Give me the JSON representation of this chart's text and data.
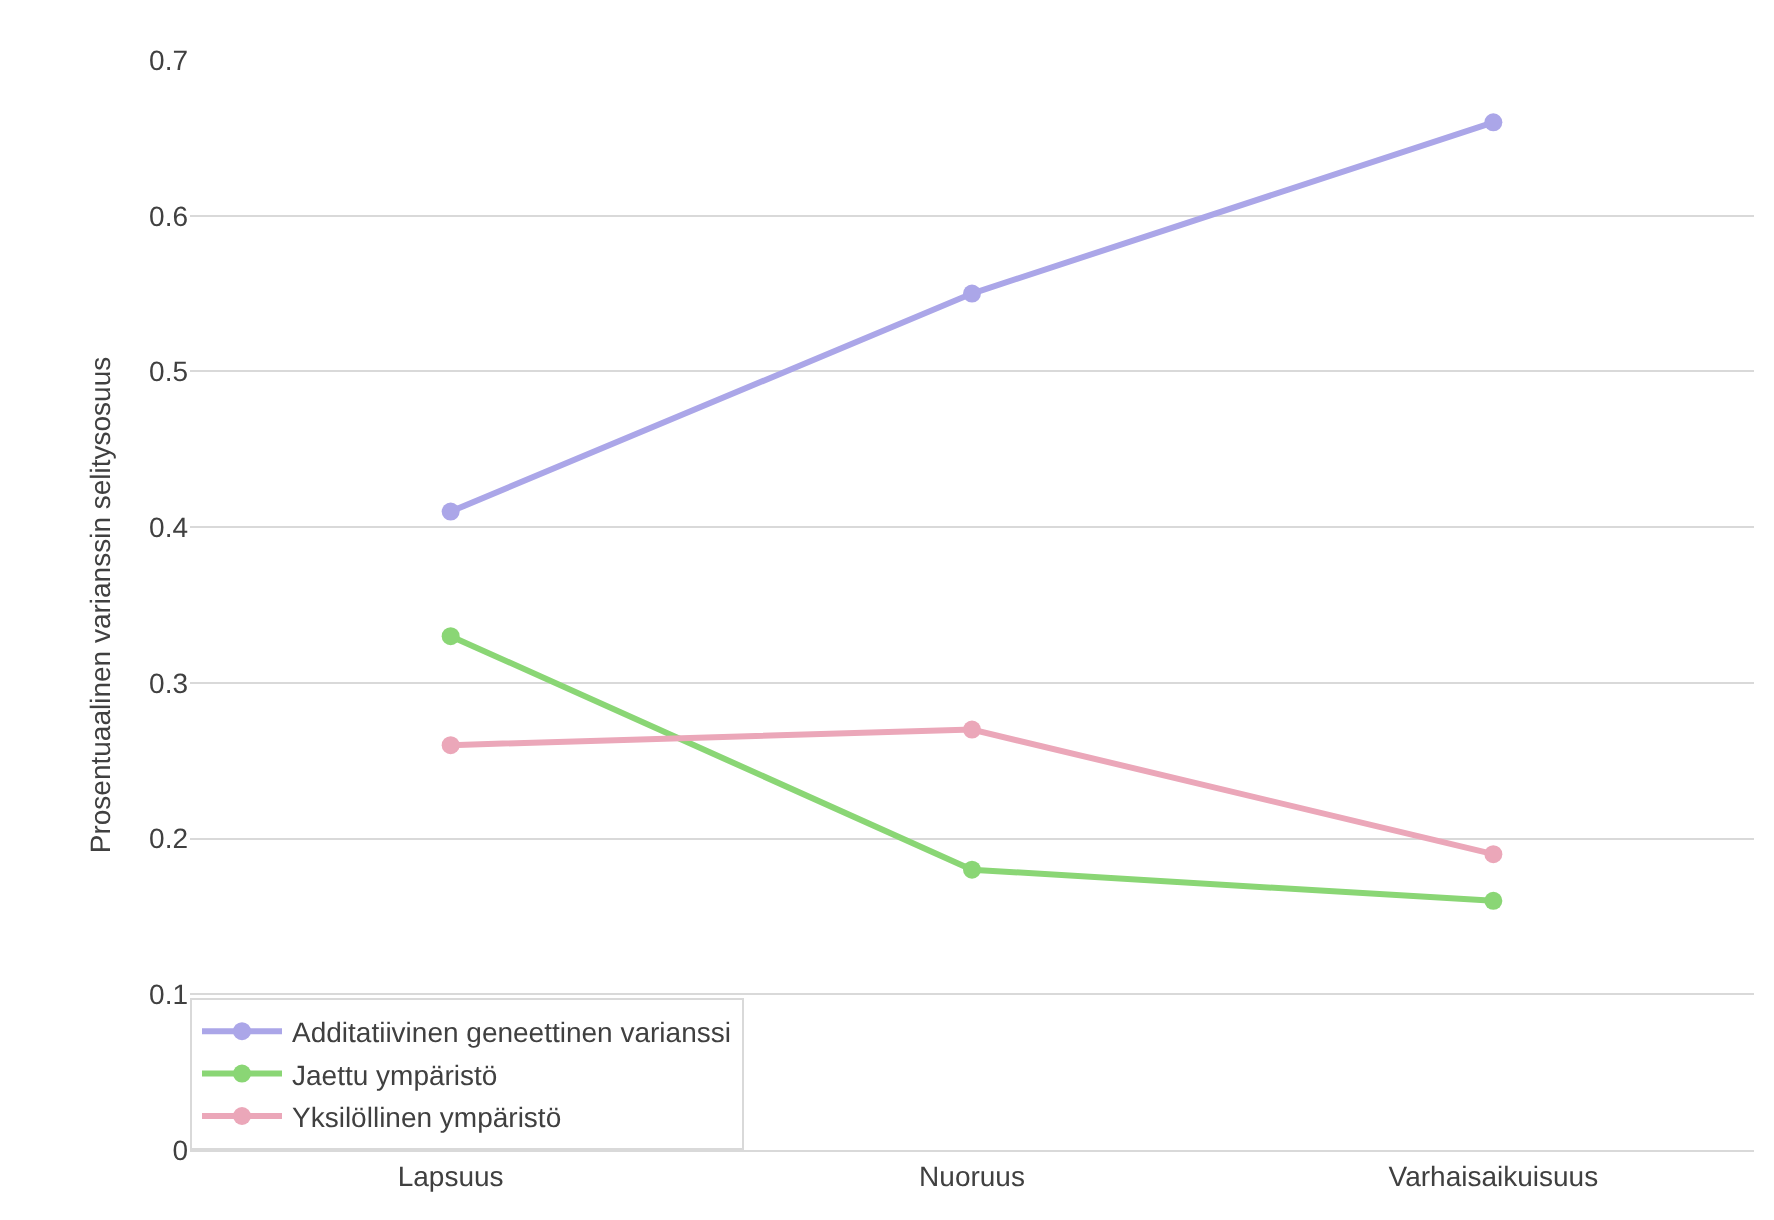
{
  "chart_data": {
    "type": "line",
    "ylabel": "Prosentuaalinen varianssin selitysosuus",
    "categories": [
      "Lapsuus",
      "Nuoruus",
      "Varhaisaikuisuus"
    ],
    "series": [
      {
        "name": "Additatiivinen geneettinen varianssi",
        "color": "#aba6e8",
        "values": [
          0.41,
          0.55,
          0.66
        ]
      },
      {
        "name": "Jaettu ympäristö",
        "color": "#8ad675",
        "values": [
          0.33,
          0.18,
          0.16
        ]
      },
      {
        "name": "Yksilöllinen ympäristö",
        "color": "#eba7b9",
        "values": [
          0.26,
          0.27,
          0.19
        ]
      }
    ],
    "ylim": [
      0,
      0.7
    ],
    "yticks": [
      0,
      0.1,
      0.2,
      0.3,
      0.4,
      0.5,
      0.6,
      0.7
    ],
    "grid": "y",
    "legend": "bottom left",
    "marker": "circle",
    "line_style": "solid"
  }
}
